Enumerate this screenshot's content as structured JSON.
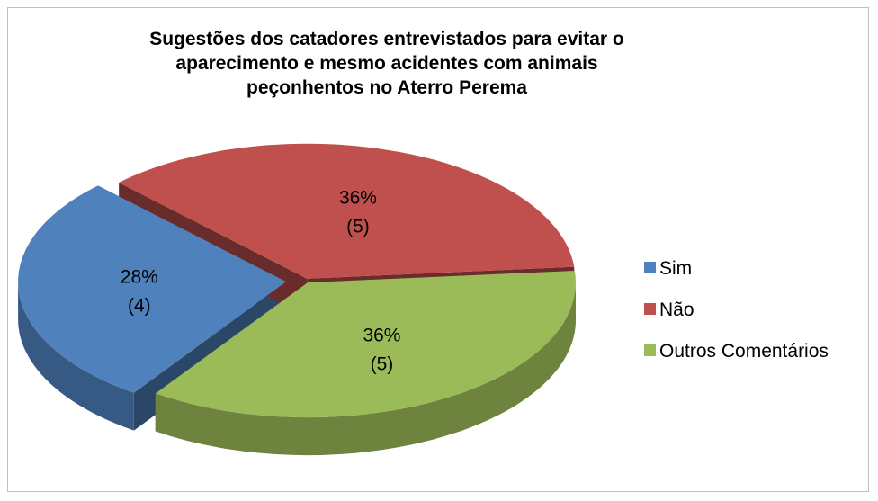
{
  "chart_data": {
    "type": "pie",
    "title": "Sugestões dos catadores entrevistados para evitar o aparecimento e mesmo acidentes com animais peçonhentos no Aterro Perema",
    "categories": [
      "Sim",
      "Não",
      "Outros Comentários"
    ],
    "values": [
      28,
      36,
      36
    ],
    "value_labels": [
      "28%",
      "36%",
      "36%"
    ],
    "counts": [
      4,
      5,
      5
    ],
    "count_labels": [
      "(4)",
      "(5)",
      "(5)"
    ],
    "colors": [
      "#4f81bd",
      "#c0504d",
      "#9bbb59"
    ],
    "legend": "right"
  }
}
